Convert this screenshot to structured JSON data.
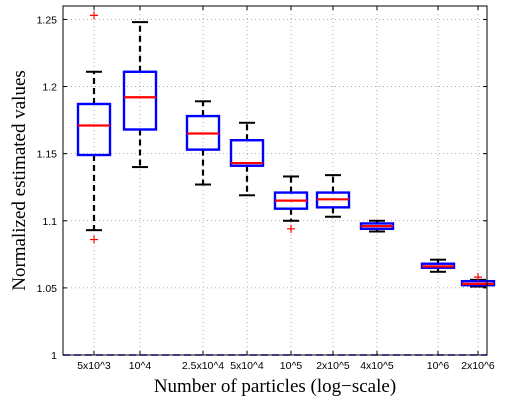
{
  "chart_data": {
    "type": "boxplot",
    "title": "",
    "xlabel": "Number of particles (log−scale)",
    "ylabel": "Normalized estimated values",
    "x_scale": "log",
    "ylim": [
      1.0,
      1.26
    ],
    "yticks": [
      1,
      1.05,
      1.1,
      1.15,
      1.2,
      1.25
    ],
    "ytick_labels": [
      "1",
      "1.05",
      "1.1",
      "1.15",
      "1.2",
      "1.25"
    ],
    "grid": true,
    "reference_line": {
      "y": 1.0,
      "style": "dashed",
      "color": "#0000ff"
    },
    "colors": {
      "box": "#0000ff",
      "median": "#ff0000",
      "whisker": "#000000",
      "outlier": "#ff0000",
      "grid": "#9a9a9a"
    },
    "categories": [
      "5x10^3",
      "10^4",
      "2.5x10^4",
      "5x10^4",
      "10^5",
      "2x10^5",
      "4x10^5",
      "10^6",
      "2x10^6"
    ],
    "x": [
      5000,
      10000,
      25000,
      50000,
      100000,
      200000,
      400000,
      1000000,
      2000000
    ],
    "boxes": [
      {
        "whisker_low": 1.093,
        "q1": 1.149,
        "median": 1.171,
        "q3": 1.187,
        "whisker_high": 1.211,
        "outliers": [
          1.253,
          1.086
        ]
      },
      {
        "whisker_low": 1.14,
        "q1": 1.168,
        "median": 1.192,
        "q3": 1.211,
        "whisker_high": 1.248,
        "outliers": []
      },
      {
        "whisker_low": 1.127,
        "q1": 1.153,
        "median": 1.165,
        "q3": 1.178,
        "whisker_high": 1.189,
        "outliers": []
      },
      {
        "whisker_low": 1.119,
        "q1": 1.141,
        "median": 1.143,
        "q3": 1.16,
        "whisker_high": 1.173,
        "outliers": []
      },
      {
        "whisker_low": 1.1,
        "q1": 1.109,
        "median": 1.115,
        "q3": 1.121,
        "whisker_high": 1.133,
        "outliers": [
          1.094
        ]
      },
      {
        "whisker_low": 1.103,
        "q1": 1.11,
        "median": 1.116,
        "q3": 1.121,
        "whisker_high": 1.134,
        "outliers": []
      },
      {
        "whisker_low": 1.092,
        "q1": 1.094,
        "median": 1.096,
        "q3": 1.098,
        "whisker_high": 1.1,
        "outliers": []
      },
      {
        "whisker_low": 1.062,
        "q1": 1.065,
        "median": 1.066,
        "q3": 1.068,
        "whisker_high": 1.071,
        "outliers": []
      },
      {
        "whisker_low": 1.051,
        "q1": 1.052,
        "median": 1.053,
        "q3": 1.055,
        "whisker_high": 1.056,
        "outliers": [
          1.058
        ]
      }
    ]
  }
}
